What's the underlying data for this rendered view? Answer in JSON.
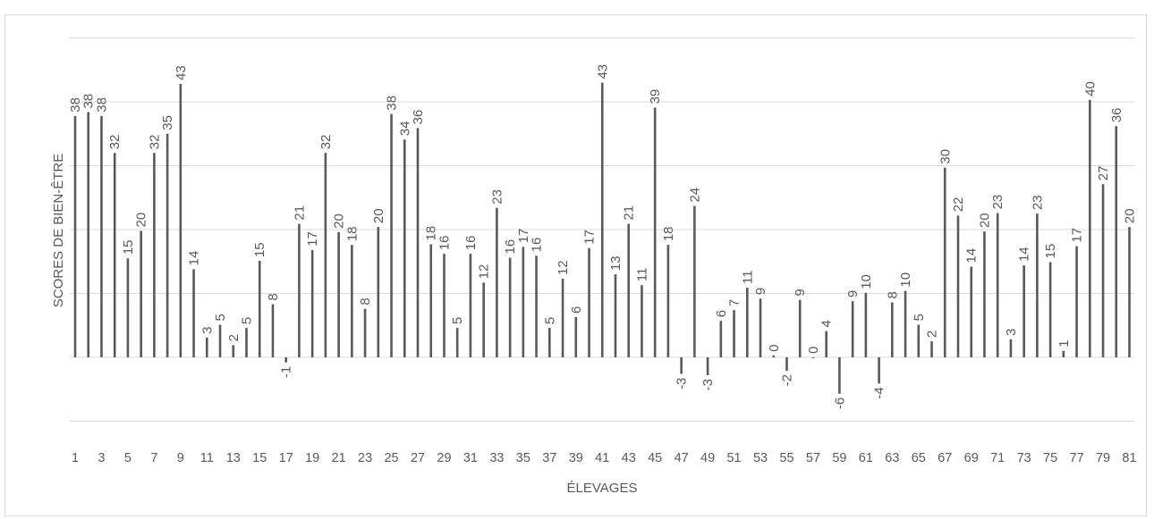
{
  "chart_data": {
    "type": "bar",
    "title": "",
    "xlabel": "ÉLEVAGES",
    "ylabel": "SCORES DE BIEN-ÊTRE",
    "ylim": [
      -10,
      50
    ],
    "gridlines": [
      -10,
      0,
      10,
      20,
      30,
      40,
      50
    ],
    "grid": true,
    "legend": "none",
    "bar_color": "#595959",
    "grid_color": "#d9d9d9",
    "categories": [
      "1",
      "2",
      "3",
      "4",
      "5",
      "6",
      "7",
      "8",
      "9",
      "10",
      "11",
      "12",
      "13",
      "14",
      "15",
      "16",
      "17",
      "18",
      "19",
      "20",
      "21",
      "22",
      "23",
      "24",
      "25",
      "26",
      "27",
      "28",
      "29",
      "30",
      "31",
      "32",
      "33",
      "34",
      "35",
      "36",
      "37",
      "38",
      "39",
      "40",
      "41",
      "42",
      "43",
      "44",
      "45",
      "46",
      "47",
      "48",
      "49",
      "50",
      "51",
      "52",
      "53",
      "54",
      "55",
      "56",
      "57",
      "58",
      "59",
      "60",
      "61",
      "62",
      "63",
      "64",
      "65",
      "66",
      "67",
      "68",
      "69",
      "70",
      "71",
      "72",
      "73",
      "74",
      "75",
      "76",
      "77",
      "78",
      "79",
      "80",
      "81"
    ],
    "tick_labels": [
      "1",
      "3",
      "5",
      "7",
      "9",
      "11",
      "13",
      "15",
      "17",
      "19",
      "21",
      "23",
      "25",
      "27",
      "29",
      "31",
      "33",
      "35",
      "37",
      "39",
      "41",
      "43",
      "45",
      "47",
      "49",
      "51",
      "53",
      "55",
      "57",
      "59",
      "61",
      "63",
      "65",
      "67",
      "69",
      "71",
      "73",
      "75",
      "77",
      "79",
      "81"
    ],
    "values": [
      38,
      38,
      38,
      32,
      15,
      20,
      32,
      35,
      43,
      14,
      3,
      5,
      2,
      5,
      15,
      8,
      -1,
      21,
      17,
      32,
      20,
      18,
      8,
      20,
      38,
      34,
      36,
      18,
      16,
      5,
      16,
      12,
      23,
      16,
      17,
      16,
      5,
      12,
      6,
      17,
      43,
      13,
      21,
      11,
      39,
      18,
      -3,
      24,
      -3,
      6,
      7,
      11,
      9,
      0,
      -2,
      9,
      0,
      4,
      -6,
      9,
      10,
      -4,
      8,
      10,
      5,
      2,
      30,
      22,
      14,
      20,
      23,
      3,
      14,
      23,
      15,
      1,
      17,
      40,
      27,
      36,
      20
    ],
    "heights": [
      37.8,
      38.4,
      37.8,
      32.0,
      15.5,
      19.8,
      32.0,
      35.0,
      42.8,
      13.8,
      3.1,
      5.1,
      1.9,
      4.6,
      15.1,
      8.3,
      -0.8,
      20.9,
      16.8,
      32.0,
      19.6,
      17.6,
      7.6,
      20.4,
      38.1,
      34.1,
      35.9,
      17.7,
      16.2,
      4.6,
      16.2,
      11.7,
      23.4,
      15.6,
      17.3,
      15.9,
      4.6,
      12.3,
      6.3,
      17.1,
      43.0,
      13.0,
      20.9,
      11.3,
      39.1,
      17.6,
      -2.6,
      23.7,
      -2.8,
      5.7,
      7.4,
      10.9,
      9.2,
      0.3,
      -2.1,
      9.0,
      0.0,
      4.1,
      -5.7,
      8.8,
      10.1,
      -4.1,
      8.6,
      10.4,
      5.1,
      2.5,
      29.7,
      22.2,
      14.2,
      19.7,
      22.6,
      2.8,
      14.4,
      22.5,
      14.9,
      1.0,
      17.4,
      40.3,
      27.1,
      36.2,
      20.4
    ]
  }
}
